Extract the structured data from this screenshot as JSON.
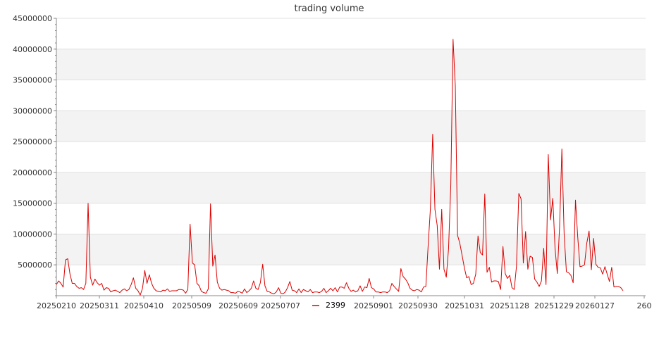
{
  "chart_data": {
    "type": "line",
    "title": "trading volume",
    "xlabel": "",
    "ylabel": "",
    "ylim": [
      0,
      45000000
    ],
    "y_ticks": [
      "5000000",
      "10000000",
      "15000000",
      "20000000",
      "25000000",
      "30000000",
      "35000000",
      "40000000",
      "45000000"
    ],
    "x_tick_labels": [
      "20250210",
      "20250311",
      "20250410",
      "20250509",
      "20250609",
      "20250707",
      "20250901",
      "20250930",
      "20251031",
      "20251128",
      "20251229",
      "20260127",
      "260"
    ],
    "grid": "horizontal, alternating bands",
    "legend_position": "bottom-center",
    "colors": {
      "series": "#dd0000",
      "band": "#f3f3f3",
      "grid": "#e0e0e0",
      "axis": "#888888"
    },
    "series": [
      {
        "name": "2399",
        "values": [
          1800000,
          2400000,
          2000000,
          1400000,
          5800000,
          6000000,
          3500000,
          2000000,
          2000000,
          1500000,
          1200000,
          1300000,
          1000000,
          2000000,
          15000000,
          3000000,
          1700000,
          2700000,
          2100000,
          1700000,
          2000000,
          900000,
          1300000,
          1200000,
          600000,
          800000,
          900000,
          700000,
          500000,
          900000,
          1100000,
          800000,
          1000000,
          1800000,
          2900000,
          1200000,
          800000,
          100000,
          1200000,
          4100000,
          2000000,
          3400000,
          2000000,
          1200000,
          800000,
          700000,
          600000,
          900000,
          800000,
          1100000,
          700000,
          800000,
          800000,
          800000,
          1000000,
          1000000,
          900000,
          400000,
          1000000,
          11600000,
          5300000,
          5000000,
          2000000,
          1600000,
          700000,
          500000,
          400000,
          1100000,
          14900000,
          4800000,
          6600000,
          2200000,
          1200000,
          900000,
          1000000,
          900000,
          800000,
          500000,
          500000,
          400000,
          700000,
          600000,
          400000,
          1100000,
          500000,
          800000,
          1200000,
          2400000,
          1200000,
          1000000,
          2100000,
          5100000,
          1600000,
          700000,
          600000,
          400000,
          300000,
          600000,
          1300000,
          400000,
          300000,
          600000,
          1300000,
          2300000,
          900000,
          800000,
          500000,
          1100000,
          500000,
          1000000,
          800000,
          600000,
          1000000,
          500000,
          600000,
          600000,
          500000,
          700000,
          1200000,
          500000,
          800000,
          1200000,
          800000,
          1300000,
          600000,
          1400000,
          1400000,
          1200000,
          2100000,
          1200000,
          700000,
          900000,
          600000,
          800000,
          1600000,
          700000,
          1400000,
          1300000,
          2800000,
          1300000,
          1100000,
          600000,
          600000,
          500000,
          600000,
          600000,
          500000,
          800000,
          2000000,
          1500000,
          1100000,
          700000,
          4400000,
          3100000,
          2700000,
          2100000,
          1200000,
          900000,
          800000,
          1000000,
          900000,
          600000,
          1400000,
          1500000,
          8000000,
          14000000,
          26200000,
          14000000,
          11400000,
          4300000,
          14000000,
          4300000,
          3000000,
          7600000,
          18000000,
          41600000,
          34000000,
          9800000,
          8500000,
          6500000,
          4500000,
          2900000,
          3100000,
          1800000,
          2000000,
          3500000,
          9700000,
          7000000,
          6600000,
          16500000,
          3800000,
          4600000,
          2200000,
          2400000,
          2400000,
          2300000,
          1000000,
          8000000,
          3600000,
          2800000,
          3300000,
          1300000,
          1000000,
          4800000,
          16600000,
          15700000,
          5300000,
          10400000,
          4300000,
          6400000,
          6200000,
          2700000,
          2200000,
          1500000,
          2400000,
          7700000,
          1800000,
          22900000,
          12300000,
          15800000,
          7700000,
          3600000,
          11300000,
          23800000,
          10000000,
          3900000,
          3700000,
          3300000,
          2100000,
          15500000,
          9500000,
          4700000,
          4800000,
          5000000,
          8500000,
          10500000,
          4200000,
          9300000,
          5100000,
          4600000,
          4500000,
          3500000,
          4700000,
          3500000,
          2300000,
          4600000,
          1400000,
          1500000,
          1500000,
          1300000,
          800000
        ]
      }
    ]
  }
}
